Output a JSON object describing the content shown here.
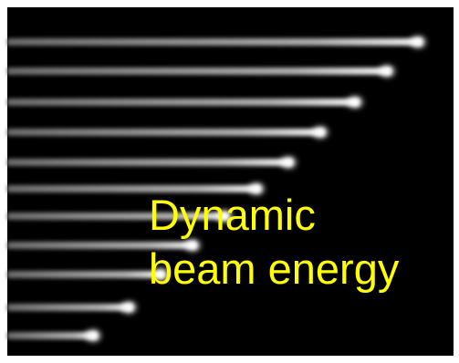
{
  "caption": {
    "lines": [
      "Dynamic",
      "beam energy"
    ]
  }
}
